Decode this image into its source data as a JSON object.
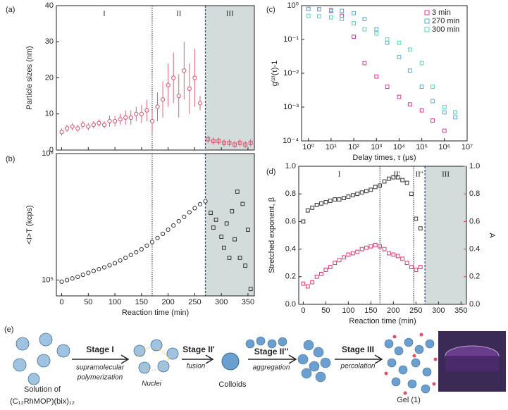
{
  "chart_data": [
    {
      "type": "scatter",
      "panel_label": "(a)",
      "ylabel": "Particle sizes (nm)",
      "xlim": [
        -10,
        362
      ],
      "ylim": [
        0,
        40
      ],
      "xticks": [
        0,
        50,
        100,
        150,
        200,
        250,
        300,
        350
      ],
      "xtick_labels": false,
      "yticks": [
        0,
        10,
        20,
        30,
        40
      ],
      "log_y": false,
      "dividers": [
        170,
        270
      ],
      "region_labels": [
        "I",
        "II",
        "III"
      ],
      "shade_last": true,
      "series": [
        {
          "color": "#e0506a",
          "marker": "circle",
          "x": [
            0,
            10,
            20,
            30,
            40,
            50,
            60,
            70,
            80,
            90,
            100,
            110,
            120,
            130,
            140,
            150,
            160,
            170,
            180,
            190,
            200,
            210,
            220,
            230,
            240,
            250,
            260
          ],
          "values": [
            5,
            6,
            6.5,
            6,
            7,
            6.5,
            7,
            7.5,
            7,
            8,
            8,
            8.5,
            9,
            9,
            10,
            10,
            11,
            8,
            12,
            14,
            18,
            20,
            15,
            22,
            17,
            20,
            13
          ],
          "errors": [
            1,
            1,
            1,
            1,
            1,
            1,
            1,
            1,
            1,
            1.5,
            1.5,
            1.5,
            2,
            2,
            2,
            2.5,
            3,
            3,
            4,
            5,
            6,
            7,
            6,
            8,
            7,
            8,
            2
          ]
        },
        {
          "color": "#e0506a",
          "marker": "square",
          "x": [
            275,
            285,
            295,
            305,
            315,
            325,
            335,
            345,
            355
          ],
          "values": [
            3,
            2.5,
            2.5,
            2,
            2,
            1.5,
            2,
            1.5,
            2
          ],
          "errors": [
            1,
            1,
            1,
            1,
            1,
            1,
            1,
            1,
            1
          ]
        }
      ]
    },
    {
      "type": "scatter",
      "panel_label": "(b)",
      "ylabel": "<I>T (kcps)",
      "xlabel": "Reaction time (min)",
      "xlim": [
        -10,
        362
      ],
      "ylim": [
        75000,
        1000000
      ],
      "log_y": true,
      "xticks": [
        0,
        50,
        100,
        150,
        200,
        250,
        300,
        350
      ],
      "xtick_labels": true,
      "yticks": [
        {
          "value": 100000,
          "label": "10⁵"
        },
        {
          "value": 1000000,
          "label": "10⁶"
        }
      ],
      "dividers": [
        170,
        270
      ],
      "shade_last": true,
      "series": [
        {
          "color": "#333333",
          "marker": "circle",
          "x": [
            0,
            10,
            20,
            30,
            40,
            50,
            60,
            70,
            80,
            90,
            100,
            110,
            120,
            130,
            140,
            150,
            160,
            170,
            180,
            190,
            200,
            210,
            220,
            230,
            240,
            250,
            260,
            270
          ],
          "values": [
            97000,
            100000,
            103000,
            106000,
            110000,
            114000,
            118000,
            122000,
            126000,
            131000,
            136000,
            143000,
            150000,
            158000,
            166000,
            175000,
            187000,
            200000,
            215000,
            232000,
            250000,
            270000,
            292000,
            316000,
            343000,
            370000,
            398000,
            420000
          ]
        },
        {
          "color": "#333333",
          "marker": "square",
          "x": [
            280,
            285,
            290,
            300,
            305,
            310,
            315,
            320,
            325,
            330,
            335,
            340,
            345,
            350,
            355
          ],
          "values": [
            340000,
            260000,
            300000,
            220000,
            180000,
            280000,
            150000,
            350000,
            210000,
            500000,
            150000,
            400000,
            130000,
            250000,
            85000
          ]
        }
      ]
    },
    {
      "type": "scatter",
      "panel_label": "(c)",
      "ylabel": "g⁽²⁾(τ)-1",
      "xlabel": "Delay times, τ (μs)",
      "xlim": [
        0.5,
        10000000
      ],
      "ylim": [
        0.0001,
        1
      ],
      "log_x": true,
      "log_y": true,
      "xtick_labels": true,
      "xticks": [
        {
          "value": 1,
          "label": "10⁰"
        },
        {
          "value": 10,
          "label": "10¹"
        },
        {
          "value": 100,
          "label": "10²"
        },
        {
          "value": 1000,
          "label": "10³"
        },
        {
          "value": 10000,
          "label": "10⁴"
        },
        {
          "value": 100000,
          "label": "10⁵"
        },
        {
          "value": 1000000,
          "label": "10⁶"
        },
        {
          "value": 10000000,
          "label": "10⁷"
        }
      ],
      "yticks": [
        {
          "value": 0.0001,
          "label": "10⁻⁴"
        },
        {
          "value": 0.001,
          "label": "10⁻³"
        },
        {
          "value": 0.01,
          "label": "10⁻²"
        },
        {
          "value": 0.1,
          "label": "10⁻¹"
        },
        {
          "value": 1,
          "label": "10⁰"
        }
      ],
      "legend": "top-right",
      "series": [
        {
          "name": "3 min",
          "color": "#e0339a",
          "marker": "square",
          "x": [
            1,
            3,
            10,
            30,
            100,
            300,
            1000,
            3000,
            10000,
            30000,
            100000,
            300000,
            1000000
          ],
          "values": [
            0.8,
            0.78,
            0.7,
            0.5,
            0.12,
            0.02,
            0.008,
            0.004,
            0.002,
            0.0012,
            0.0008,
            0.0004,
            0.0002
          ]
        },
        {
          "name": "270 min",
          "color": "#5aa9d8",
          "marker": "square",
          "x": [
            1,
            3,
            10,
            30,
            100,
            300,
            1000,
            3000,
            10000,
            30000,
            100000,
            300000,
            1000000,
            3000000
          ],
          "values": [
            0.8,
            0.78,
            0.75,
            0.7,
            0.6,
            0.4,
            0.2,
            0.08,
            0.03,
            0.012,
            0.004,
            0.0015,
            0.0007,
            0.0005
          ]
        },
        {
          "name": "300 min",
          "color": "#4fd8a8",
          "marker": "square",
          "x": [
            1,
            3,
            10,
            30,
            100,
            300,
            1000,
            3000,
            10000,
            30000,
            100000,
            300000,
            1000000,
            3000000
          ],
          "values": [
            0.5,
            0.48,
            0.45,
            0.4,
            0.3,
            0.2,
            0.15,
            0.1,
            0.08,
            0.05,
            0.02,
            0.004,
            0.001,
            0.0007
          ]
        }
      ]
    },
    {
      "type": "scatter",
      "panel_label": "(d)",
      "ylabel": "Stretched exponent, β",
      "y2label": "A",
      "xlabel": "Reaction time (min)",
      "xlim": [
        -10,
        362
      ],
      "ylim": [
        0,
        1
      ],
      "y2lim": [
        0,
        1
      ],
      "y2_color": "#e8336a",
      "xtick_labels": true,
      "xticks": [
        0,
        50,
        100,
        150,
        200,
        250,
        300,
        350
      ],
      "yticks": [
        {
          "value": 0,
          "label": "0.0"
        },
        0.2,
        0.4,
        0.6,
        0.8,
        {
          "value": 1,
          "label": "1.0"
        }
      ],
      "y2ticks": [
        {
          "value": 0,
          "label": "0.0"
        },
        0.2,
        0.4,
        0.6,
        0.8,
        {
          "value": 1,
          "label": "1.0"
        }
      ],
      "dividers": [
        170,
        245,
        270
      ],
      "region_labels": [
        "I",
        "II'",
        "II''",
        "III"
      ],
      "shade_last": true,
      "series": [
        {
          "color": "#333333",
          "marker": "square",
          "x": [
            0,
            10,
            20,
            30,
            40,
            50,
            60,
            70,
            80,
            90,
            100,
            110,
            120,
            130,
            140,
            150,
            160,
            170,
            180,
            190,
            200,
            210,
            220,
            230,
            240,
            250,
            260
          ],
          "values": [
            0.6,
            0.68,
            0.7,
            0.72,
            0.73,
            0.74,
            0.75,
            0.76,
            0.76,
            0.77,
            0.78,
            0.79,
            0.8,
            0.81,
            0.82,
            0.83,
            0.85,
            0.86,
            0.89,
            0.91,
            0.92,
            0.92,
            0.9,
            0.88,
            0.8,
            0.62,
            0.55
          ]
        },
        {
          "color": "#e8336a",
          "marker": "square",
          "axis": "y2",
          "x": [
            0,
            10,
            20,
            30,
            40,
            50,
            60,
            70,
            80,
            90,
            100,
            110,
            120,
            130,
            140,
            150,
            160,
            170,
            180,
            190,
            200,
            210,
            220,
            230,
            240,
            250,
            260
          ],
          "values": [
            0.15,
            0.13,
            0.16,
            0.2,
            0.22,
            0.25,
            0.27,
            0.3,
            0.32,
            0.34,
            0.36,
            0.37,
            0.38,
            0.4,
            0.41,
            0.42,
            0.43,
            0.42,
            0.4,
            0.37,
            0.36,
            0.35,
            0.33,
            0.3,
            0.27,
            0.25,
            0.27
          ]
        }
      ]
    }
  ],
  "diagram": {
    "label": "(e)",
    "solution": [
      "Solution of",
      "(C₁₂RhMOP)(bix)₁₂"
    ],
    "stage1": "Stage I",
    "stage1_note": [
      "supramolecular",
      "polymerization"
    ],
    "nuclei": "Nuclei",
    "stage2a": "Stage II'",
    "stage2a_note": "fusion",
    "colloids": "Colloids",
    "stage2b": "Stage II''",
    "stage2b_note": "aggregation",
    "stage3": "Stage III",
    "stage3_note": "percolation",
    "gel": "Gel (1)"
  }
}
